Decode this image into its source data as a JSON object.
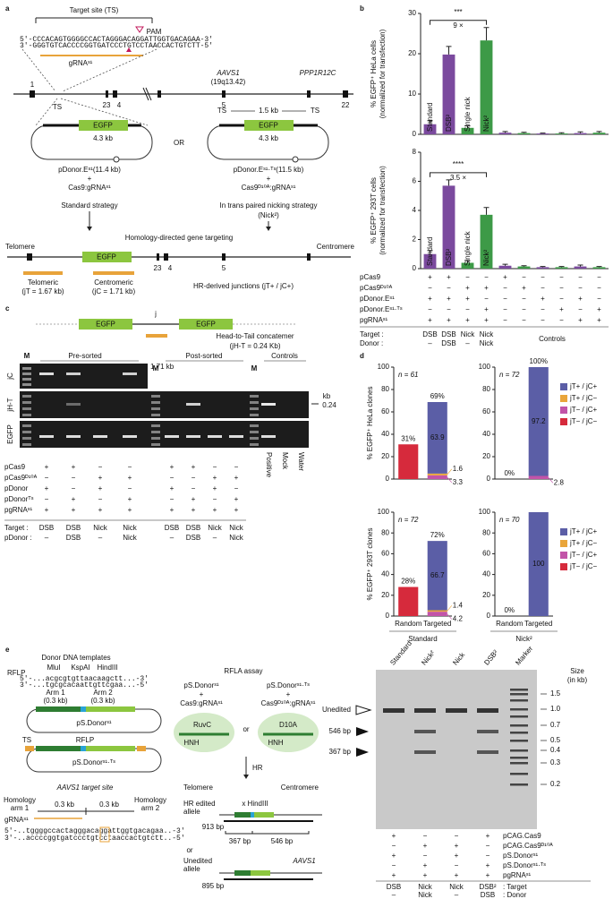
{
  "panel_labels": {
    "a": "a",
    "b": "b",
    "c": "c",
    "d": "d",
    "e": "e"
  },
  "a": {
    "target_site": "Target site (TS)",
    "pam": "PAM",
    "seq_top": "5′-CCCACAGTGGGGCCACTAGGGACAGGATTGGTGACAGAA-3′",
    "seq_bottom": "3′-GGGTGTCACCCCGGTGATCCCTGTCCTAACCACTGTCTT-5′",
    "grna": "gRNAˢ¹",
    "gene": "AAVS1",
    "locus": "(19q13.42)",
    "gene2": "PPP1R12C",
    "exons": [
      "1",
      "23",
      "4",
      "5",
      "22"
    ],
    "ts": "TS",
    "egfp": "EGFP",
    "size": "4.3 kb",
    "donor1": "pDonor.Eˢ¹(11.4 kb)",
    "plus": "+",
    "nuclease1": "Cas9:gRNAˢ¹",
    "or": "OR",
    "spacer": "1.5 kb",
    "donor2": "pDonor.Eˢ¹·ᵀˢ(11.5 kb)",
    "nuclease2": "Cas9ᴰ¹⁰ᴬ:gRNAˢ¹",
    "strategy1": "Standard strategy",
    "strategy2": "In trans paired nicking strategy",
    "strategy2b": "(Nick²)",
    "hdr": "Homology-directed gene targeting",
    "telomere": "Telomere",
    "centromere": "Centromere",
    "junction1": "Telomeric",
    "junction1b": "(jT = 1.67 kb)",
    "junction2": "Centromeric",
    "junction2b": "(jC = 1.71 kb)",
    "junctions": "HR-derived junctions (jT+ / jC+)"
  },
  "b_table": {
    "rows": [
      {
        "name": "pCas9",
        "cells": [
          "+",
          "+",
          "−",
          "−",
          "+",
          "−",
          "−",
          "−",
          "−",
          "−"
        ]
      },
      {
        "name": "pCas9ᴰ¹⁰ᴬ",
        "cells": [
          "−",
          "−",
          "+",
          "+",
          "−",
          "+",
          "−",
          "−",
          "−",
          "−"
        ]
      },
      {
        "name": "pDonor.Eˢ¹",
        "cells": [
          "+",
          "+",
          "+",
          "−",
          "−",
          "−",
          "+",
          "−",
          "+",
          "−"
        ]
      },
      {
        "name": "pDonor.Eˢ¹·ᵀˢ",
        "cells": [
          "−",
          "−",
          "−",
          "+",
          "−",
          "−",
          "−",
          "+",
          "−",
          "+"
        ]
      },
      {
        "name": "pgRNAˢ¹",
        "cells": [
          "+",
          "+",
          "+",
          "+",
          "−",
          "−",
          "−",
          "−",
          "+",
          "+"
        ]
      }
    ],
    "target_label": "Target :",
    "target": [
      "DSB",
      "DSB",
      "Nick",
      "Nick"
    ],
    "donor_label": "Donor :",
    "donor": [
      "–",
      "DSB",
      "–",
      "Nick"
    ],
    "controls": "Controls"
  },
  "c": {
    "egfp": "EGFP",
    "j": "j",
    "concatemer": "Head-to-Tail concatemer",
    "concatemer_b": "(jH-T = 0.24 Kb)",
    "pre": "Pre-sorted",
    "post": "Post-sorted",
    "controls": "Controls",
    "m": "M",
    "gels": [
      "jC",
      "jH-T",
      "EGFP"
    ],
    "jc_size": "1.71 kb",
    "kb": "kb",
    "hts": "0.24",
    "control_lanes": [
      "Positive",
      "Mock",
      "Water"
    ],
    "rows": [
      {
        "name": "pCas9",
        "cells": [
          "+",
          "+",
          "−",
          "−",
          "+",
          "+",
          "−",
          "−"
        ]
      },
      {
        "name": "pCas9ᴰ¹⁰ᴬ",
        "cells": [
          "−",
          "−",
          "+",
          "+",
          "−",
          "−",
          "+",
          "+"
        ]
      },
      {
        "name": "pDonor",
        "cells": [
          "+",
          "−",
          "+",
          "−",
          "+",
          "−",
          "+",
          "−"
        ]
      },
      {
        "name": "pDonorᵀˢ",
        "cells": [
          "−",
          "+",
          "−",
          "+",
          "−",
          "+",
          "−",
          "+"
        ]
      },
      {
        "name": "pgRNAˢ¹",
        "cells": [
          "+",
          "+",
          "+",
          "+",
          "+",
          "+",
          "+",
          "+"
        ]
      }
    ],
    "target_label": "Target :",
    "target": [
      "DSB",
      "DSB",
      "Nick",
      "Nick",
      "DSB",
      "DSB",
      "Nick",
      "Nick"
    ],
    "donor_label": "pDonor :",
    "donor": [
      "–",
      "DSB",
      "–",
      "Nick",
      "–",
      "DSB",
      "–",
      "Nick"
    ]
  },
  "e": {
    "title": "Donor DNA templates",
    "rflp": "RFLP",
    "sites": [
      "MluI",
      "KspAI",
      "HindIII"
    ],
    "seq_top": "5′-...acgcgtgttaacaagctt...-3′",
    "seq_bottom": "3′-...tgcgcacaattgttcgaa...-5′",
    "arm1": "Arm 1",
    "arm2": "Arm 2",
    "arm_size": "(0.3 kb)",
    "donor1": "pS.Donorˢ¹",
    "ts": "TS",
    "donor2": "pS.Donorˢ¹·ᵀˢ",
    "target_site": "AAVS1 target site",
    "homology": "Homology",
    "harm1": "arm 1",
    "harm2": "arm 2",
    "hsize": "0.3 kb",
    "grna": "gRNAˢ¹",
    "tseq_top": "5′-..tggggccactagggacaggattggtgacagaa..-3′",
    "tseq_bottom": "3′-..accccggtgatccctgtcctaaccactgtctt..-5′",
    "assay": "RFLA assay",
    "plus": "+",
    "nuclease1": "Cas9:gRNAˢ¹",
    "or": "or",
    "nuclease2": "Cas9ᴰ¹⁰ᴬ:gRNAˢ¹",
    "ruvc": "RuvC",
    "hnh": "HNH",
    "d10a": "D10A",
    "hr": "HR",
    "telomere": "Telomere",
    "centromere": "Centromere",
    "edited": "HR edited",
    "allele": "allele",
    "hindiii": "x HindIII",
    "edited_size": "913 bp",
    "frag1": "367 bp",
    "frag2": "546 bp",
    "unedited": "Unedited",
    "gene": "AAVS1",
    "unedited_size": "895 bp",
    "lanes": [
      "Standard",
      "Nick²",
      "Nick",
      "DSB²",
      "Marker"
    ],
    "size_title": "Size",
    "size_unit": "(in kb)",
    "ladder": [
      "1.5",
      "1.0",
      "0.7",
      "0.5",
      "0.4",
      "0.3",
      "0.2"
    ],
    "rows": [
      {
        "name": "pCAG.Cas9",
        "cells": [
          "+",
          "−",
          "−",
          "+"
        ]
      },
      {
        "name": "pCAG.Cas9ᴰ¹⁰ᴬ",
        "cells": [
          "−",
          "+",
          "+",
          "−"
        ]
      },
      {
        "name": "pS.Donorˢ¹",
        "cells": [
          "+",
          "−",
          "+",
          "−"
        ]
      },
      {
        "name": "pS.Donorˢ¹·ᵀˢ",
        "cells": [
          "−",
          "+",
          "−",
          "+"
        ]
      },
      {
        "name": "pgRNAˢ¹",
        "cells": [
          "+",
          "+",
          "+",
          "+"
        ]
      }
    ],
    "target": [
      "DSB",
      "Nick",
      "Nick",
      "DSB²"
    ],
    "target_label": ": Target",
    "donor": [
      "–",
      "Nick",
      "–",
      "DSB"
    ],
    "donor_label": ": Donor"
  },
  "chart_data": [
    {
      "type": "bar",
      "categories": [
        "Standard",
        "DSB²",
        "Single nick",
        "Nick²",
        null,
        null,
        null,
        null,
        null,
        null
      ],
      "values": [
        2.5,
        19.8,
        1.6,
        23.3,
        0.4,
        0.3,
        0.2,
        0.2,
        0.3,
        0.4
      ],
      "errors": [
        0.9,
        2.0,
        0.5,
        3.2,
        0.3,
        0.2,
        0.1,
        0.2,
        0.3,
        0.3
      ],
      "colors": [
        "#7b4a9e",
        "#7b4a9e",
        "#3d9a47",
        "#3d9a47",
        "#7b4a9e",
        "#3d9a47",
        "#7b4a9e",
        "#3d9a47",
        "#7b4a9e",
        "#3d9a47"
      ],
      "ylim": [
        0,
        30
      ],
      "yticks": [
        0,
        10,
        20,
        30
      ],
      "ylabel": [
        "% EGFP⁺ HeLa cells",
        "(normalized for transfection)"
      ],
      "annotations": [
        "***",
        "9 ×"
      ]
    },
    {
      "type": "bar",
      "categories": [
        "Standard",
        "DSB²",
        "Single nick",
        "Nick²",
        null,
        null,
        null,
        null,
        null,
        null
      ],
      "values": [
        1.0,
        5.7,
        0.4,
        3.7,
        0.2,
        0.15,
        0.1,
        0.1,
        0.15,
        0.1
      ],
      "errors": [
        0.25,
        0.4,
        0.15,
        0.5,
        0.1,
        0.05,
        0.05,
        0.05,
        0.1,
        0.05
      ],
      "colors": [
        "#7b4a9e",
        "#7b4a9e",
        "#3d9a47",
        "#3d9a47",
        "#7b4a9e",
        "#3d9a47",
        "#7b4a9e",
        "#3d9a47",
        "#7b4a9e",
        "#3d9a47"
      ],
      "ylim": [
        0,
        8
      ],
      "yticks": [
        0,
        2,
        4,
        6,
        8
      ],
      "ylabel": [
        "% EGFP⁺ 293T cells",
        "(normalized for transfection)"
      ],
      "annotations": [
        "****",
        "3.5 ×"
      ]
    },
    {
      "type": "stacked_bar",
      "categories": [
        null,
        null
      ],
      "series": [
        {
          "name": "jT+ / jC+",
          "color": "#5b5ea6",
          "values": [
            null,
            63.9
          ]
        },
        {
          "name": "jT+ / jC−",
          "color": "#e9a53a",
          "values": [
            null,
            1.6
          ]
        },
        {
          "name": "jT− / jC+",
          "color": "#c254a8",
          "values": [
            null,
            3.3
          ]
        },
        {
          "name": "jT− / jC−",
          "color": "#d62a3c",
          "values": [
            31,
            null
          ],
          "value_labels": [
            "31%",
            null
          ]
        }
      ],
      "ylim": [
        0,
        100
      ],
      "yticks": [
        0,
        20,
        40,
        60,
        80,
        100
      ],
      "ylabel": "% EGFP⁺ HeLa clones",
      "n_label": "n = 61",
      "total_label": "69%"
    },
    {
      "type": "stacked_bar",
      "categories": [
        null,
        null
      ],
      "series": [
        {
          "name": "jT+ / jC+",
          "color": "#5b5ea6",
          "values": [
            null,
            97.2
          ]
        },
        {
          "name": "jT+ / jC−",
          "color": "#e9a53a",
          "values": [
            null,
            null
          ]
        },
        {
          "name": "jT− / jC+",
          "color": "#c254a8",
          "values": [
            null,
            2.8
          ]
        },
        {
          "name": "jT− / jC−",
          "color": "#d62a3c",
          "values": [
            0,
            null
          ],
          "value_labels": [
            "0%",
            null
          ]
        }
      ],
      "ylim": [
        0,
        100
      ],
      "yticks": [
        0,
        20,
        40,
        60,
        80,
        100
      ],
      "n_label": "n = 72",
      "total_label": "100%",
      "legend": "right"
    },
    {
      "type": "stacked_bar",
      "categories": [
        "Random",
        "Targeted"
      ],
      "series": [
        {
          "name": "jT+ / jC+",
          "color": "#5b5ea6",
          "values": [
            null,
            66.7
          ]
        },
        {
          "name": "jT+ / jC−",
          "color": "#e9a53a",
          "values": [
            null,
            1.4
          ]
        },
        {
          "name": "jT− / jC+",
          "color": "#c254a8",
          "values": [
            null,
            4.2
          ]
        },
        {
          "name": "jT− / jC−",
          "color": "#d62a3c",
          "values": [
            28,
            null
          ],
          "value_labels": [
            "28%",
            null
          ]
        }
      ],
      "ylim": [
        0,
        100
      ],
      "yticks": [
        0,
        20,
        40,
        60,
        80,
        100
      ],
      "ylabel": "% EGFP⁺ 293T clones",
      "n_label": "n = 72",
      "total_label": "72%",
      "xlabel": "Standard"
    },
    {
      "type": "stacked_bar",
      "categories": [
        "Random",
        "Targeted"
      ],
      "series": [
        {
          "name": "jT+ / jC+",
          "color": "#5b5ea6",
          "values": [
            null,
            100
          ]
        },
        {
          "name": "jT+ / jC−",
          "color": "#e9a53a",
          "values": [
            null,
            null
          ]
        },
        {
          "name": "jT− / jC+",
          "color": "#c254a8",
          "values": [
            null,
            null
          ]
        },
        {
          "name": "jT− / jC−",
          "color": "#d62a3c",
          "values": [
            0,
            null
          ],
          "value_labels": [
            "0%",
            null
          ]
        }
      ],
      "ylim": [
        0,
        100
      ],
      "yticks": [
        0,
        20,
        40,
        60,
        80,
        100
      ],
      "n_label": "n = 70",
      "xlabel": "Nick²",
      "legend": "right"
    }
  ]
}
